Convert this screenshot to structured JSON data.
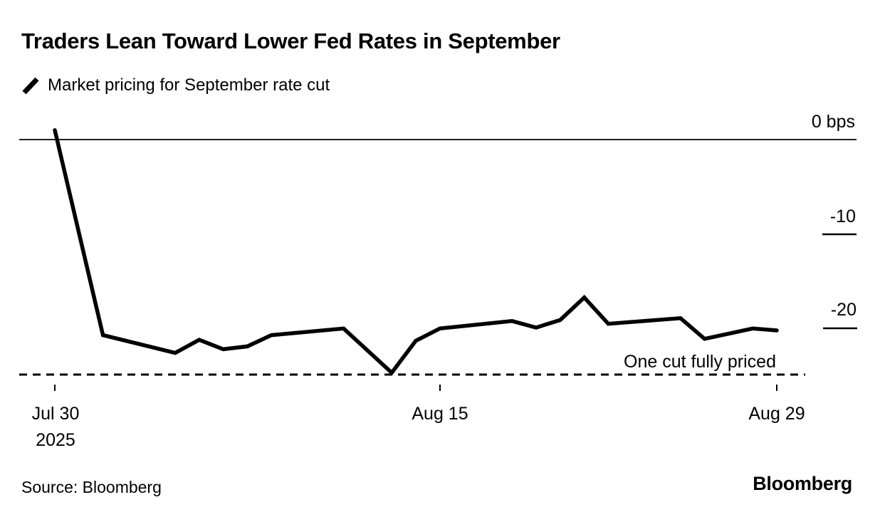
{
  "header": {
    "title": "Traders Lean Toward Lower Fed Rates in September",
    "legend_label": "Market pricing for September rate cut"
  },
  "footer": {
    "source": "Source: Bloomberg",
    "logo": "Bloomberg"
  },
  "colors": {
    "line": "#000000",
    "text": "#000000",
    "background": "#ffffff"
  },
  "chart_data": {
    "type": "line",
    "title": "Traders Lean Toward Lower Fed Rates in September",
    "series_name": "Market pricing for September rate cut",
    "unit": "bps",
    "x": [
      "Jul 30",
      "Aug 1",
      "Aug 4",
      "Aug 5",
      "Aug 6",
      "Aug 7",
      "Aug 8",
      "Aug 11",
      "Aug 13",
      "Aug 14",
      "Aug 15",
      "Aug 18",
      "Aug 19",
      "Aug 20",
      "Aug 21",
      "Aug 22",
      "Aug 25",
      "Aug 26",
      "Aug 28",
      "Aug 29"
    ],
    "day_offsets": [
      0,
      2,
      5,
      6,
      7,
      8,
      9,
      12,
      14,
      15,
      16,
      19,
      20,
      21,
      22,
      23,
      26,
      27,
      29,
      30
    ],
    "values": [
      1.0,
      -20.8,
      -22.7,
      -21.3,
      -22.3,
      -22.0,
      -20.8,
      -20.1,
      -24.8,
      -21.4,
      -20.1,
      -19.3,
      -20.0,
      -19.2,
      -16.8,
      -19.6,
      -19.0,
      -21.2,
      -20.1,
      -20.3
    ],
    "ylim": [
      -27,
      2
    ],
    "grid": false,
    "legend_position": "top-left",
    "y_ticks": [
      {
        "label": "0 bps",
        "value": 0
      },
      {
        "label": "-10",
        "value": -10
      },
      {
        "label": "-20",
        "value": -20
      }
    ],
    "x_ticks": [
      {
        "label": "Jul 30",
        "sublabel": "2025",
        "day": 0
      },
      {
        "label": "Aug 15",
        "day": 16
      },
      {
        "label": "Aug 29",
        "day": 30
      }
    ],
    "annotation": {
      "label": "One cut fully priced",
      "value": -25
    }
  }
}
